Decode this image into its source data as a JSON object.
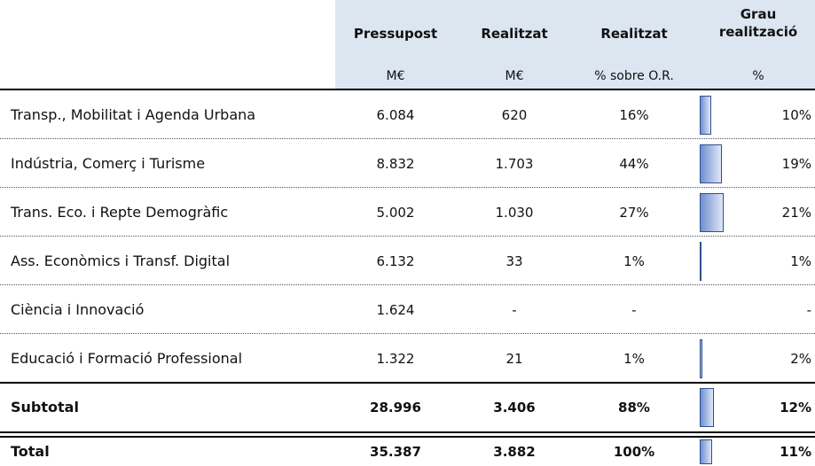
{
  "table": {
    "columns": [
      {
        "title": "Pressupost",
        "unit": "M€"
      },
      {
        "title": "Realitzat",
        "unit": "M€"
      },
      {
        "title": "Realitzat",
        "unit": "% sobre O.R."
      },
      {
        "title": "Grau realització",
        "unit": "%"
      }
    ],
    "rows": [
      {
        "label": "Transp., Mobilitat i Agenda Urbana",
        "cells": [
          "6.084",
          "620",
          "16%"
        ],
        "grau": {
          "value": 10,
          "label": "10%"
        }
      },
      {
        "label": "Indústria, Comerç i Turisme",
        "cells": [
          "8.832",
          "1.703",
          "44%"
        ],
        "grau": {
          "value": 19,
          "label": "19%"
        }
      },
      {
        "label": "Trans. Eco. i Repte Demogràfic",
        "cells": [
          "5.002",
          "1.030",
          "27%"
        ],
        "grau": {
          "value": 21,
          "label": "21%"
        }
      },
      {
        "label": "Ass. Econòmics i Transf. Digital",
        "cells": [
          "6.132",
          "33",
          "1%"
        ],
        "grau": {
          "value": 1,
          "label": "1%"
        }
      },
      {
        "label": "Ciència i Innovació",
        "cells": [
          "1.624",
          "-",
          "-"
        ],
        "grau": {
          "value": null,
          "label": "-"
        }
      },
      {
        "label": "Educació i Formació Professional",
        "cells": [
          "1.322",
          "21",
          "1%"
        ],
        "grau": {
          "value": 2,
          "label": "2%"
        }
      },
      {
        "label": "Subtotal",
        "cells": [
          "28.996",
          "3.406",
          "88%"
        ],
        "grau": {
          "value": 12,
          "label": "12%"
        },
        "bold": true
      },
      {
        "label": "Total",
        "cells": [
          "35.387",
          "3.882",
          "100%"
        ],
        "grau": {
          "value": 11,
          "label": "11%"
        },
        "bold": true
      }
    ]
  }
}
